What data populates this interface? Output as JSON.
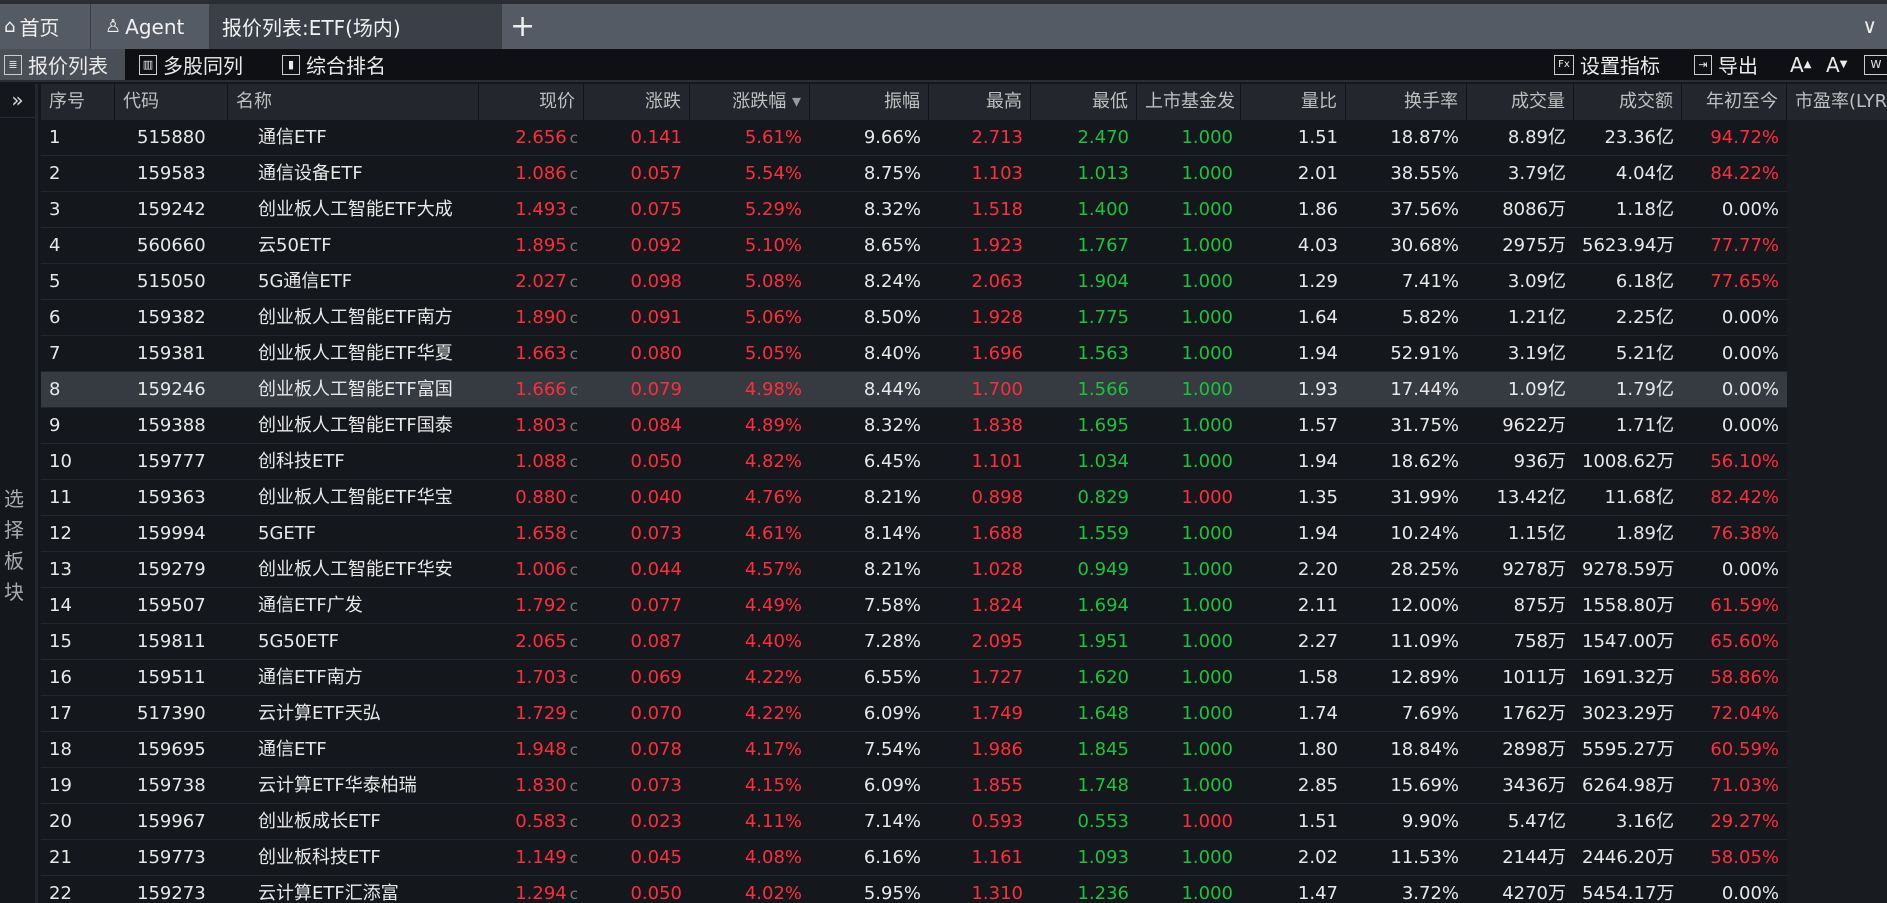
{
  "tabs": [
    {
      "label": "首页",
      "icon": "home-icon"
    },
    {
      "label": "Agent",
      "icon": "user-icon"
    },
    {
      "label": "报价列表:ETF(场内)"
    }
  ],
  "toolbar": {
    "left": [
      "报价列表",
      "多股同列",
      "综合排名"
    ],
    "set_indicator": "设置指标",
    "export": "导出",
    "font_up": "A",
    "font_down": "A"
  },
  "sidebar": {
    "expand": "»",
    "label": "选择板块"
  },
  "colors": {
    "up": "#ff2d3c",
    "down": "#19c43c",
    "highlight_row": "#363a41"
  },
  "columns": [
    "序号",
    "代码",
    "名称",
    "现价",
    "涨跌",
    "涨跌幅",
    "振幅",
    "最高",
    "最低",
    "上市基金发",
    "量比",
    "换手率",
    "成交量",
    "成交额",
    "年初至今",
    "市盈率(LYR"
  ],
  "sort": {
    "column": "涨跌幅",
    "direction": "desc"
  },
  "selected_row": 8,
  "rows": [
    [
      "1",
      "515880",
      "通信ETF",
      "2.656",
      "0.141",
      "5.61%",
      "9.66%",
      "2.713",
      "2.470",
      "1.000",
      "1.51",
      "18.87%",
      "8.89亿",
      "23.36亿",
      "94.72%"
    ],
    [
      "2",
      "159583",
      "通信设备ETF",
      "1.086",
      "0.057",
      "5.54%",
      "8.75%",
      "1.103",
      "1.013",
      "1.000",
      "2.01",
      "38.55%",
      "3.79亿",
      "4.04亿",
      "84.22%"
    ],
    [
      "3",
      "159242",
      "创业板人工智能ETF大成",
      "1.493",
      "0.075",
      "5.29%",
      "8.32%",
      "1.518",
      "1.400",
      "1.000",
      "1.86",
      "37.56%",
      "8086万",
      "1.18亿",
      "0.00%"
    ],
    [
      "4",
      "560660",
      "云50ETF",
      "1.895",
      "0.092",
      "5.10%",
      "8.65%",
      "1.923",
      "1.767",
      "1.000",
      "4.03",
      "30.68%",
      "2975万",
      "5623.94万",
      "77.77%"
    ],
    [
      "5",
      "515050",
      "5G通信ETF",
      "2.027",
      "0.098",
      "5.08%",
      "8.24%",
      "2.063",
      "1.904",
      "1.000",
      "1.29",
      "7.41%",
      "3.09亿",
      "6.18亿",
      "77.65%"
    ],
    [
      "6",
      "159382",
      "创业板人工智能ETF南方",
      "1.890",
      "0.091",
      "5.06%",
      "8.50%",
      "1.928",
      "1.775",
      "1.000",
      "1.64",
      "5.82%",
      "1.21亿",
      "2.25亿",
      "0.00%"
    ],
    [
      "7",
      "159381",
      "创业板人工智能ETF华夏",
      "1.663",
      "0.080",
      "5.05%",
      "8.40%",
      "1.696",
      "1.563",
      "1.000",
      "1.94",
      "52.91%",
      "3.19亿",
      "5.21亿",
      "0.00%"
    ],
    [
      "8",
      "159246",
      "创业板人工智能ETF富国",
      "1.666",
      "0.079",
      "4.98%",
      "8.44%",
      "1.700",
      "1.566",
      "1.000",
      "1.93",
      "17.44%",
      "1.09亿",
      "1.79亿",
      "0.00%"
    ],
    [
      "9",
      "159388",
      "创业板人工智能ETF国泰",
      "1.803",
      "0.084",
      "4.89%",
      "8.32%",
      "1.838",
      "1.695",
      "1.000",
      "1.57",
      "31.75%",
      "9622万",
      "1.71亿",
      "0.00%"
    ],
    [
      "10",
      "159777",
      "创科技ETF",
      "1.088",
      "0.050",
      "4.82%",
      "6.45%",
      "1.101",
      "1.034",
      "1.000",
      "1.94",
      "18.62%",
      "936万",
      "1008.62万",
      "56.10%"
    ],
    [
      "11",
      "159363",
      "创业板人工智能ETF华宝",
      "0.880",
      "0.040",
      "4.76%",
      "8.21%",
      "0.898",
      "0.829",
      "1.000",
      "1.35",
      "31.99%",
      "13.42亿",
      "11.68亿",
      "82.42%"
    ],
    [
      "12",
      "159994",
      "5GETF",
      "1.658",
      "0.073",
      "4.61%",
      "8.14%",
      "1.688",
      "1.559",
      "1.000",
      "1.94",
      "10.24%",
      "1.15亿",
      "1.89亿",
      "76.38%"
    ],
    [
      "13",
      "159279",
      "创业板人工智能ETF华安",
      "1.006",
      "0.044",
      "4.57%",
      "8.21%",
      "1.028",
      "0.949",
      "1.000",
      "2.20",
      "28.25%",
      "9278万",
      "9278.59万",
      "0.00%"
    ],
    [
      "14",
      "159507",
      "通信ETF广发",
      "1.792",
      "0.077",
      "4.49%",
      "7.58%",
      "1.824",
      "1.694",
      "1.000",
      "2.11",
      "12.00%",
      "875万",
      "1558.80万",
      "61.59%"
    ],
    [
      "15",
      "159811",
      "5G50ETF",
      "2.065",
      "0.087",
      "4.40%",
      "7.28%",
      "2.095",
      "1.951",
      "1.000",
      "2.27",
      "11.09%",
      "758万",
      "1547.00万",
      "65.60%"
    ],
    [
      "16",
      "159511",
      "通信ETF南方",
      "1.703",
      "0.069",
      "4.22%",
      "6.55%",
      "1.727",
      "1.620",
      "1.000",
      "1.58",
      "12.89%",
      "1011万",
      "1691.32万",
      "58.86%"
    ],
    [
      "17",
      "517390",
      "云计算ETF天弘",
      "1.729",
      "0.070",
      "4.22%",
      "6.09%",
      "1.749",
      "1.648",
      "1.000",
      "1.74",
      "7.69%",
      "1762万",
      "3023.29万",
      "72.04%"
    ],
    [
      "18",
      "159695",
      "通信ETF",
      "1.948",
      "0.078",
      "4.17%",
      "7.54%",
      "1.986",
      "1.845",
      "1.000",
      "1.80",
      "18.84%",
      "2898万",
      "5595.27万",
      "60.59%"
    ],
    [
      "19",
      "159738",
      "云计算ETF华泰柏瑞",
      "1.830",
      "0.073",
      "4.15%",
      "6.09%",
      "1.855",
      "1.748",
      "1.000",
      "2.85",
      "15.69%",
      "3436万",
      "6264.98万",
      "71.03%"
    ],
    [
      "20",
      "159967",
      "创业板成长ETF",
      "0.583",
      "0.023",
      "4.11%",
      "7.14%",
      "0.593",
      "0.553",
      "1.000",
      "1.51",
      "9.90%",
      "5.47亿",
      "3.16亿",
      "29.27%"
    ],
    [
      "21",
      "159773",
      "创业板科技ETF",
      "1.149",
      "0.045",
      "4.08%",
      "6.16%",
      "1.161",
      "1.093",
      "1.000",
      "2.02",
      "11.53%",
      "2144万",
      "2446.20万",
      "58.05%"
    ],
    [
      "22",
      "159273",
      "云计算ETF汇添富",
      "1.294",
      "0.050",
      "4.02%",
      "5.95%",
      "1.310",
      "1.236",
      "1.000",
      "1.47",
      "3.72%",
      "4270万",
      "5454.17万",
      "0.00%"
    ]
  ],
  "price_suffix": "c"
}
